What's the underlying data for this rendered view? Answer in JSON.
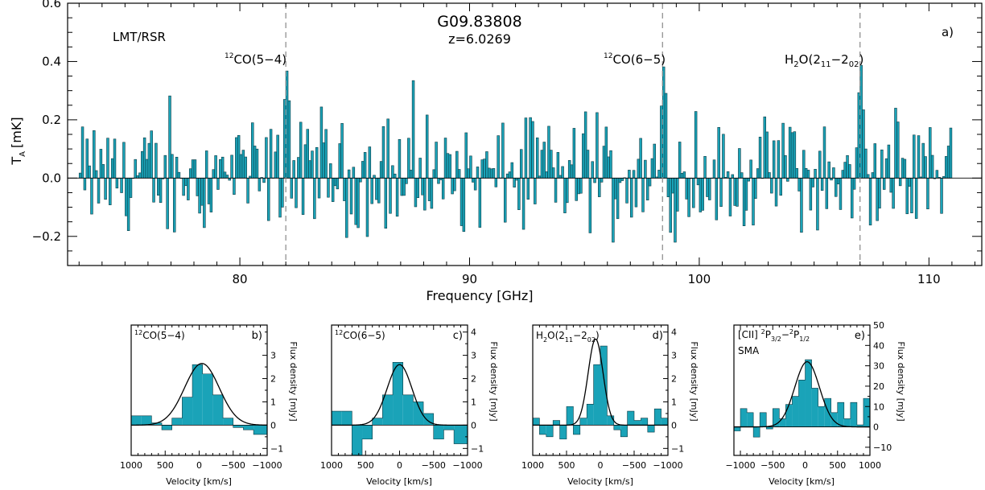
{
  "chart_data": [
    {
      "type": "bar",
      "panel_label": "a)",
      "title": "G09.83808",
      "subtitle": "z=6.0269",
      "instrument": "LMT/RSR",
      "xlabel": "Frequency [GHz]",
      "ylabel": "T_A [mK]",
      "ylabel_main": "T",
      "ylabel_sub": "A",
      "ylabel_unit": "[mK]",
      "xlim": [
        72.5,
        112.3
      ],
      "ylim": [
        -0.3,
        0.6
      ],
      "x_ticks": [
        80,
        90,
        100,
        110
      ],
      "x_tick_labels": [
        "80",
        "90",
        "100",
        "110"
      ],
      "y_ticks": [
        -0.2,
        0.0,
        0.2,
        0.4,
        0.6
      ],
      "y_tick_labels": [
        "−0.2",
        "0.0",
        "0.2",
        "0.4",
        "0.6"
      ],
      "line_markers": [
        {
          "freq": 82.0,
          "label_main": "CO(5−4)",
          "label_sup": "12"
        },
        {
          "freq": 98.4,
          "label_main": "CO(6−5)",
          "label_sup": "12"
        },
        {
          "freq": 107.0,
          "label_main": "H",
          "label_sub1": "2",
          "label_mid": "O(2",
          "label_sub2": "11",
          "label_dash": "−2",
          "label_sub3": "02",
          "label_end": ")"
        }
      ],
      "spectrum": {
        "x_start": 73.0,
        "step": 0.1,
        "description_of_values": "",
        "values": []
      },
      "colors": {
        "fill": "#1aa3b8",
        "edge": "#0c3b44"
      }
    },
    {
      "type": "bar",
      "panel_label": "b)",
      "line_label_sup": "12",
      "line_label": "CO(5−4)",
      "xlabel": "Velocity [km/s]",
      "ylabel": "Flux density [mJy]",
      "xlim": [
        1000,
        -1000
      ],
      "ylim": [
        -1.3,
        4.3
      ],
      "x_ticks": [
        1000,
        500,
        0,
        -500,
        -1000
      ],
      "x_tick_labels": [
        "1000",
        "500",
        "0",
        "−500",
        "−1000"
      ],
      "y_ticks": [
        -1,
        0,
        1,
        2,
        3
      ],
      "y_tick_labels": [
        "−1",
        "0",
        "1",
        "2",
        "3"
      ],
      "bin_edges": [
        1000,
        850,
        700,
        550,
        400,
        250,
        100,
        -50,
        -200,
        -350,
        -500,
        -650,
        -800,
        -1000
      ],
      "values": [
        0.4,
        0.4,
        0.1,
        -0.2,
        0.3,
        1.2,
        2.6,
        2.2,
        1.3,
        0.3,
        -0.1,
        -0.2,
        -0.4
      ],
      "fit": {
        "amplitude": 2.65,
        "center": -40,
        "fwhm": 600
      }
    },
    {
      "type": "bar",
      "panel_label": "c)",
      "line_label_sup": "12",
      "line_label": "CO(6−5)",
      "xlabel": "Velocity [km/s]",
      "ylabel": "Flux density [mJy]",
      "xlim": [
        1000,
        -1000
      ],
      "ylim": [
        -1.3,
        4.3
      ],
      "x_ticks": [
        1000,
        500,
        0,
        -500,
        -1000
      ],
      "x_tick_labels": [
        "1000",
        "500",
        "0",
        "−500",
        "−1000"
      ],
      "y_ticks": [
        -1,
        0,
        1,
        2,
        3,
        4
      ],
      "y_tick_labels": [
        "−1",
        "0",
        "1",
        "2",
        "3",
        "4"
      ],
      "bin_edges": [
        1000,
        850,
        700,
        550,
        400,
        250,
        100,
        -50,
        -200,
        -350,
        -500,
        -650,
        -800,
        -1000
      ],
      "values": [
        0.6,
        0.6,
        -1.3,
        -0.6,
        0.3,
        1.3,
        2.7,
        1.3,
        1.0,
        0.5,
        -0.6,
        -0.2,
        -0.8
      ],
      "fit": {
        "amplitude": 2.6,
        "center": 0,
        "fwhm": 430
      }
    },
    {
      "type": "bar",
      "panel_label": "d)",
      "line_label": "H2O(211−202)",
      "xlabel": "Velocity [km/s]",
      "ylabel": "Flux density [mJy]",
      "xlim": [
        1000,
        -1000
      ],
      "ylim": [
        -1.3,
        4.3
      ],
      "x_ticks": [
        1000,
        500,
        0,
        -500,
        -1000
      ],
      "x_tick_labels": [
        "1000",
        "500",
        "0",
        "−500",
        "−1000"
      ],
      "y_ticks": [
        -1,
        0,
        1,
        2,
        3,
        4
      ],
      "y_tick_labels": [
        "−1",
        "0",
        "1",
        "2",
        "3",
        "4"
      ],
      "bin_edges": [
        1000,
        900,
        800,
        700,
        600,
        500,
        400,
        300,
        200,
        100,
        0,
        -100,
        -200,
        -300,
        -400,
        -500,
        -600,
        -700,
        -800,
        -900,
        -1000
      ],
      "values": [
        0.3,
        -0.4,
        -0.5,
        0.2,
        -0.6,
        0.8,
        -0.4,
        0.3,
        0.9,
        2.6,
        3.4,
        0.4,
        -0.2,
        -0.5,
        0.6,
        0.2,
        0.3,
        -0.3,
        0.7,
        0.3
      ],
      "fit": {
        "amplitude": 3.7,
        "center": 70,
        "fwhm": 260
      }
    },
    {
      "type": "bar",
      "panel_label": "e)",
      "line_label": "[CII] 2P3/2−2P1/2",
      "instrument": "SMA",
      "xlabel": "Velocity [km/s]",
      "ylabel": "Flux density [mJy]",
      "xlim": [
        -1100,
        1000
      ],
      "ylim": [
        -14,
        50
      ],
      "x_ticks": [
        -1000,
        -500,
        0,
        500,
        1000
      ],
      "x_tick_labels": [
        "−1000",
        "−500",
        "0",
        "500",
        "1000"
      ],
      "y_ticks": [
        -10,
        0,
        10,
        20,
        30,
        40,
        50
      ],
      "y_tick_labels": [
        "−10",
        "0",
        "10",
        "20",
        "30",
        "40",
        "50"
      ],
      "bin_edges": [
        -1100,
        -1000,
        -900,
        -800,
        -700,
        -600,
        -500,
        -400,
        -300,
        -200,
        -100,
        0,
        100,
        200,
        300,
        400,
        500,
        600,
        700,
        800,
        900,
        1000
      ],
      "values": [
        -2,
        9,
        7,
        -5,
        7,
        -1,
        9,
        4,
        11,
        15,
        23,
        33,
        19,
        10,
        14,
        7,
        12,
        4,
        12,
        1,
        14
      ],
      "fit": {
        "amplitude": 32,
        "center": 30,
        "fwhm": 450
      }
    }
  ]
}
